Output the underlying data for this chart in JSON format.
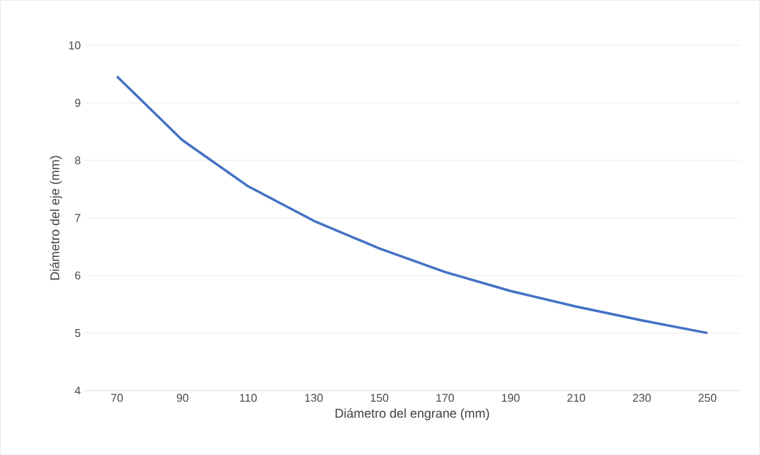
{
  "chart_data": {
    "type": "line",
    "xlabel": "Diámetro del engrane (mm)",
    "ylabel": "Diámetro del eje (mm)",
    "categories": [
      "70",
      "90",
      "110",
      "130",
      "150",
      "170",
      "190",
      "210",
      "230",
      "250"
    ],
    "values": [
      9.46,
      8.35,
      7.55,
      6.95,
      6.47,
      6.06,
      5.73,
      5.46,
      5.22,
      5.0
    ],
    "color": "#4472c4",
    "ylim": [
      4,
      10
    ],
    "yticks": [
      4,
      5,
      6,
      7,
      8,
      9,
      10
    ],
    "grid": "y",
    "marker": "none",
    "line_style": "solid"
  }
}
